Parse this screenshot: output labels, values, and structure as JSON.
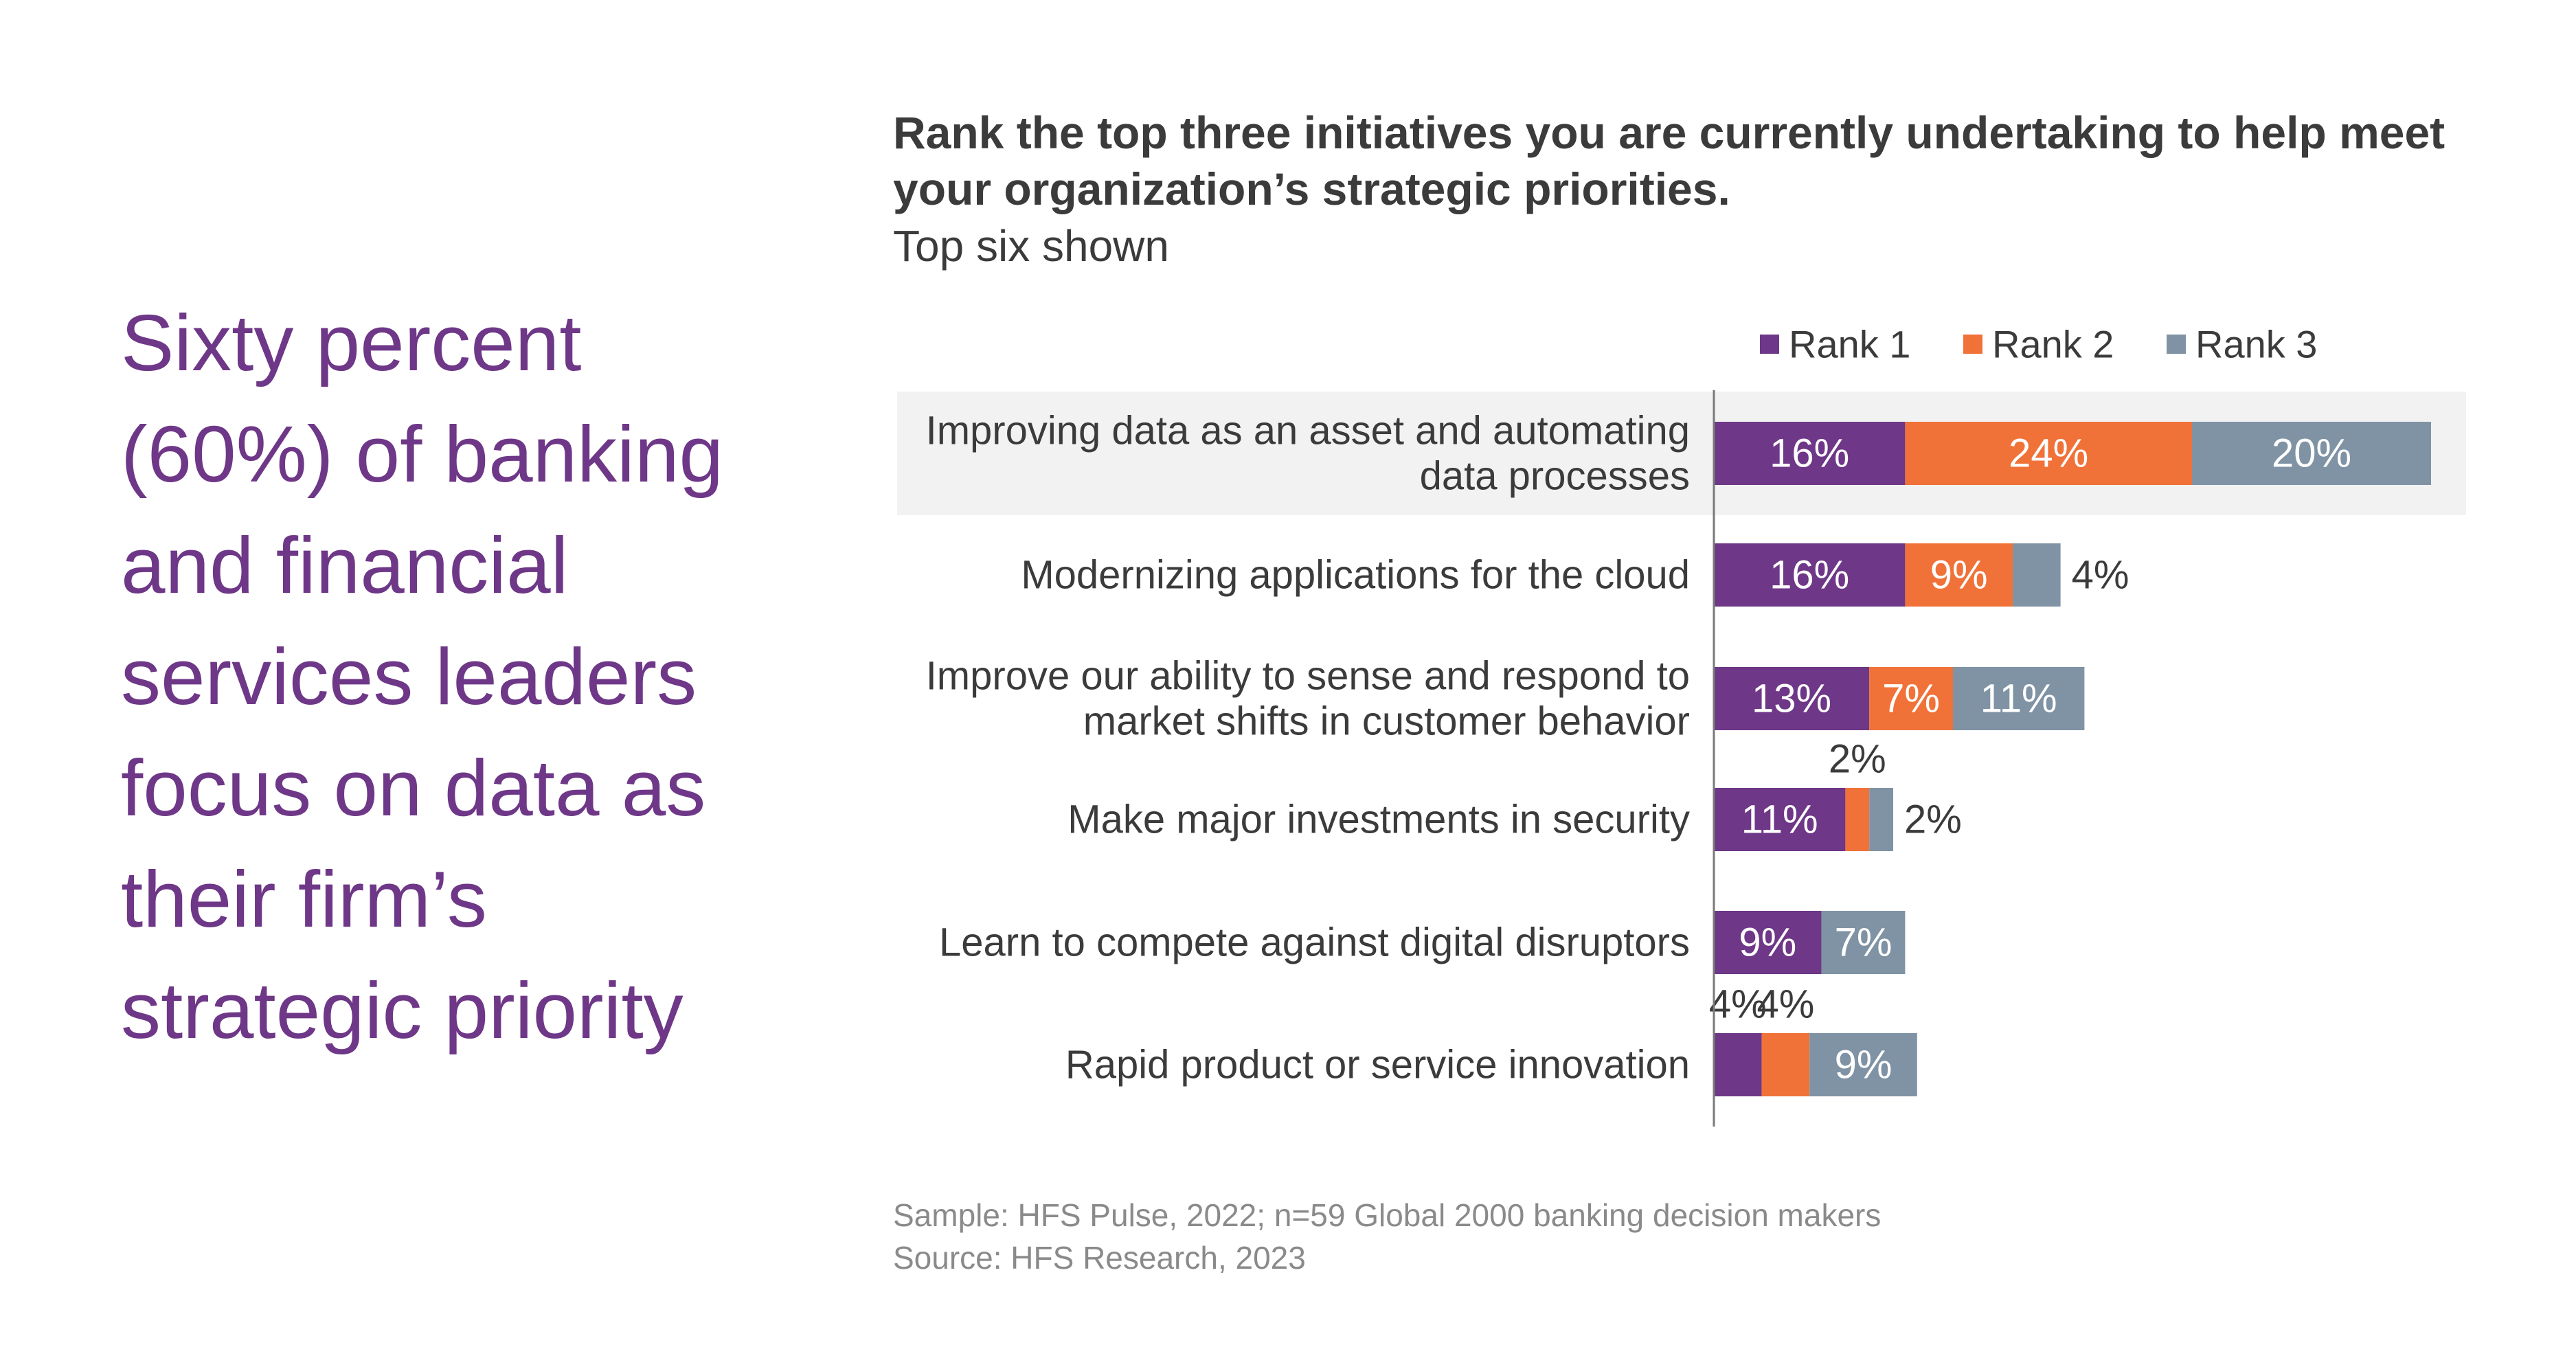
{
  "headline": "Sixty percent (60%) of banking and financial services leaders focus on data as their firm’s strategic priority",
  "title": "Rank the top three initiatives you are currently undertaking to help meet your organization’s strategic priorities.",
  "subtitle": "Top six shown",
  "sample_note": "Sample: HFS Pulse, 2022; n=59 Global 2000 banking decision makers",
  "source_note": "Source: HFS Research, 2023",
  "colors": {
    "rank1": "#6E3787",
    "rank2": "#F07238",
    "rank3": "#7F93A4",
    "highlight_band": "#F2F2F2",
    "label_text": "#3b3b3b",
    "headline": "#6E3787"
  },
  "chart_data": {
    "type": "bar",
    "orientation": "horizontal",
    "stacked": true,
    "categories": [
      "Improving data as an asset and automating data processes",
      "Modernizing applications for the cloud",
      "Improve our ability to sense and respond to market shifts in customer behavior",
      "Make major investments in security",
      "Learn to compete against digital disruptors",
      "Rapid product or service innovation"
    ],
    "category_lines": [
      [
        "Improving data as an asset and automating",
        "data processes"
      ],
      [
        "Modernizing applications for the cloud"
      ],
      [
        "Improve our ability to sense and respond to",
        "market shifts in customer behavior"
      ],
      [
        "Make major investments in security"
      ],
      [
        "Learn to compete against digital disruptors"
      ],
      [
        "Rapid product or service innovation"
      ]
    ],
    "series": [
      {
        "name": "Rank 1",
        "values": [
          16,
          16,
          13,
          11,
          9,
          4
        ]
      },
      {
        "name": "Rank 2",
        "values": [
          24,
          9,
          7,
          2,
          0,
          4
        ]
      },
      {
        "name": "Rank 3",
        "values": [
          20,
          4,
          11,
          2,
          7,
          9
        ]
      }
    ],
    "value_suffix": "%",
    "highlighted_category": "Improving data as an asset and automating data processes",
    "legend_position": "top",
    "grid": false,
    "xlim": [
      0,
      60
    ]
  }
}
